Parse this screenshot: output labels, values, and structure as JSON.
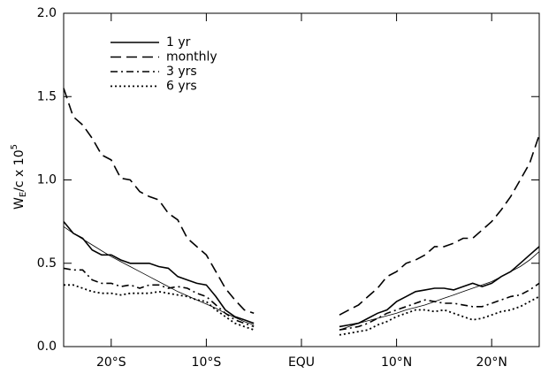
{
  "chart_data": {
    "type": "line",
    "y_label": {
      "base": "W",
      "sub": "E",
      "mid": "/c x 10",
      "sup": "5"
    },
    "x": [
      -25,
      -24,
      -23,
      -22,
      -21,
      -20,
      -19,
      -18,
      -17,
      -16,
      -15,
      -14,
      -13,
      -12,
      -11,
      -10,
      -9,
      -8,
      -7,
      -6,
      -5,
      null,
      4,
      5,
      6,
      7,
      8,
      9,
      10,
      11,
      12,
      13,
      14,
      15,
      16,
      17,
      18,
      19,
      20,
      21,
      22,
      23,
      24,
      25
    ],
    "xlim": [
      -25,
      25
    ],
    "xticks": [
      {
        "value": -20,
        "label": "20°S"
      },
      {
        "value": -10,
        "label": "10°S"
      },
      {
        "value": 0,
        "label": "EQU"
      },
      {
        "value": 10,
        "label": "10°N"
      },
      {
        "value": 20,
        "label": "20°N"
      }
    ],
    "ylim": [
      0,
      2
    ],
    "yticks": [
      {
        "value": 0,
        "label": "0.0"
      },
      0.5,
      {
        "value": 1,
        "label": "1.0"
      },
      1.5,
      {
        "value": 2,
        "label": "2.0"
      }
    ],
    "legend": "upper left",
    "series": [
      {
        "name": "1 yr",
        "color": "#000000",
        "dash": "solid",
        "values": [
          0.75,
          0.68,
          0.65,
          0.58,
          0.55,
          0.55,
          0.52,
          0.5,
          0.5,
          0.5,
          0.48,
          0.47,
          0.42,
          0.4,
          0.38,
          0.37,
          0.3,
          0.22,
          0.18,
          0.16,
          0.14,
          null,
          0.12,
          0.13,
          0.14,
          0.17,
          0.2,
          0.22,
          0.27,
          0.3,
          0.33,
          0.34,
          0.35,
          0.35,
          0.34,
          0.36,
          0.38,
          0.36,
          0.38,
          0.42,
          0.45,
          0.5,
          0.55,
          0.6
        ]
      },
      {
        "name": "monthly",
        "color": "#000000",
        "dash": "dashed",
        "values": [
          1.55,
          1.38,
          1.33,
          1.25,
          1.15,
          1.12,
          1.01,
          1.0,
          0.93,
          0.9,
          0.88,
          0.8,
          0.76,
          0.65,
          0.6,
          0.55,
          0.45,
          0.35,
          0.28,
          0.22,
          0.2,
          null,
          0.19,
          0.22,
          0.25,
          0.3,
          0.35,
          0.42,
          0.45,
          0.5,
          0.52,
          0.55,
          0.6,
          0.6,
          0.62,
          0.65,
          0.65,
          0.7,
          0.75,
          0.82,
          0.9,
          1.0,
          1.1,
          1.27
        ]
      },
      {
        "name": "3 yrs",
        "color": "#000000",
        "dash": "dashdot",
        "values": [
          0.47,
          0.46,
          0.46,
          0.4,
          0.38,
          0.38,
          0.36,
          0.37,
          0.35,
          0.37,
          0.37,
          0.35,
          0.36,
          0.35,
          0.32,
          0.3,
          0.25,
          0.2,
          0.16,
          0.14,
          0.12,
          null,
          0.1,
          0.11,
          0.12,
          0.14,
          0.17,
          0.2,
          0.22,
          0.24,
          0.26,
          0.28,
          0.27,
          0.26,
          0.26,
          0.25,
          0.24,
          0.24,
          0.26,
          0.28,
          0.3,
          0.31,
          0.34,
          0.38
        ]
      },
      {
        "name": "6 yrs",
        "color": "#000000",
        "dash": "dotted",
        "values": [
          0.37,
          0.37,
          0.35,
          0.33,
          0.32,
          0.32,
          0.31,
          0.32,
          0.32,
          0.32,
          0.33,
          0.32,
          0.31,
          0.3,
          0.28,
          0.27,
          0.22,
          0.18,
          0.14,
          0.12,
          0.1,
          null,
          0.07,
          0.08,
          0.09,
          0.1,
          0.13,
          0.15,
          0.18,
          0.2,
          0.22,
          0.22,
          0.21,
          0.22,
          0.2,
          0.18,
          0.16,
          0.17,
          0.19,
          0.21,
          0.22,
          0.24,
          0.27,
          0.3
        ]
      },
      {
        "color": "#000000",
        "dash": "thin",
        "values": [
          0.72,
          0.68,
          0.645,
          0.61,
          0.575,
          0.54,
          0.51,
          0.48,
          0.45,
          0.42,
          0.39,
          0.36,
          0.33,
          0.305,
          0.28,
          0.255,
          0.23,
          0.2,
          0.175,
          0.15,
          0.13,
          null,
          0.1,
          0.12,
          0.14,
          0.155,
          0.17,
          0.185,
          0.2,
          0.22,
          0.235,
          0.25,
          0.27,
          0.29,
          0.31,
          0.33,
          0.35,
          0.37,
          0.39,
          0.42,
          0.45,
          0.48,
          0.52,
          0.57
        ]
      }
    ]
  }
}
